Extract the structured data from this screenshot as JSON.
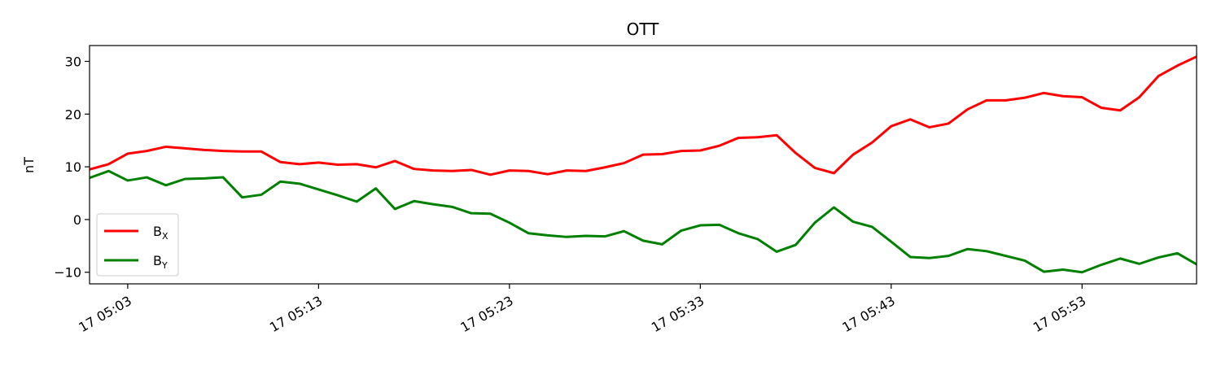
{
  "chart_data": {
    "type": "line",
    "title": "OTT",
    "xlabel": "",
    "ylabel": "nT",
    "ylim": [
      -12.2,
      33.0
    ],
    "yticks": [
      -10,
      0,
      10,
      20,
      30
    ],
    "xlim": [
      "17 05:01",
      "17 05:59"
    ],
    "xticks": [
      "17 05:03",
      "17 05:13",
      "17 05:23",
      "17 05:33",
      "17 05:43",
      "17 05:53"
    ],
    "x_minutes": [
      1,
      2,
      3,
      4,
      5,
      6,
      7,
      8,
      9,
      10,
      11,
      12,
      13,
      14,
      15,
      16,
      17,
      18,
      19,
      20,
      21,
      22,
      23,
      24,
      25,
      26,
      27,
      28,
      29,
      30,
      31,
      32,
      33,
      34,
      35,
      36,
      37,
      38,
      39,
      40,
      41,
      42,
      43,
      44,
      45,
      46,
      47,
      48,
      49,
      50,
      51,
      52,
      53,
      54,
      55,
      56,
      57,
      58,
      59
    ],
    "series": [
      {
        "name": "B",
        "subscript": "X",
        "color": "#ff0000",
        "values": [
          9.5,
          10.5,
          12.5,
          13.0,
          13.8,
          13.5,
          13.2,
          13.0,
          12.9,
          12.9,
          10.9,
          10.5,
          10.8,
          10.4,
          10.5,
          9.9,
          11.1,
          9.6,
          9.3,
          9.2,
          9.4,
          8.5,
          9.3,
          9.2,
          8.6,
          9.3,
          9.2,
          9.9,
          10.7,
          12.3,
          12.4,
          13.0,
          13.1,
          14.0,
          15.5,
          15.6,
          16.0,
          12.6,
          9.8,
          8.8,
          12.3,
          14.6,
          17.7,
          19.0,
          17.5,
          18.2,
          20.9,
          22.6,
          22.6,
          23.1,
          24.0,
          23.4,
          23.2,
          21.2,
          20.7,
          23.2,
          27.2,
          29.2,
          30.9
        ]
      },
      {
        "name": "B",
        "subscript": "Y",
        "color": "#008000",
        "values": [
          7.9,
          9.2,
          7.4,
          8.0,
          6.5,
          7.7,
          7.8,
          8.0,
          4.2,
          4.7,
          7.2,
          6.8,
          5.7,
          4.6,
          3.4,
          5.9,
          2.0,
          3.5,
          2.9,
          2.4,
          1.2,
          1.1,
          -0.6,
          -2.6,
          -3.0,
          -3.3,
          -3.1,
          -3.2,
          -2.2,
          -4.0,
          -4.7,
          -2.1,
          -1.1,
          -1.0,
          -2.6,
          -3.7,
          -6.1,
          -4.8,
          -0.6,
          2.3,
          -0.4,
          -1.4,
          -4.2,
          -7.1,
          -7.3,
          -6.9,
          -5.6,
          -6.0,
          -6.9,
          -7.8,
          -9.9,
          -9.5,
          -10.0,
          -8.6,
          -7.4,
          -8.4,
          -7.2,
          -6.4,
          -8.5
        ]
      }
    ],
    "grid": false,
    "legend_position": "lower-left"
  }
}
